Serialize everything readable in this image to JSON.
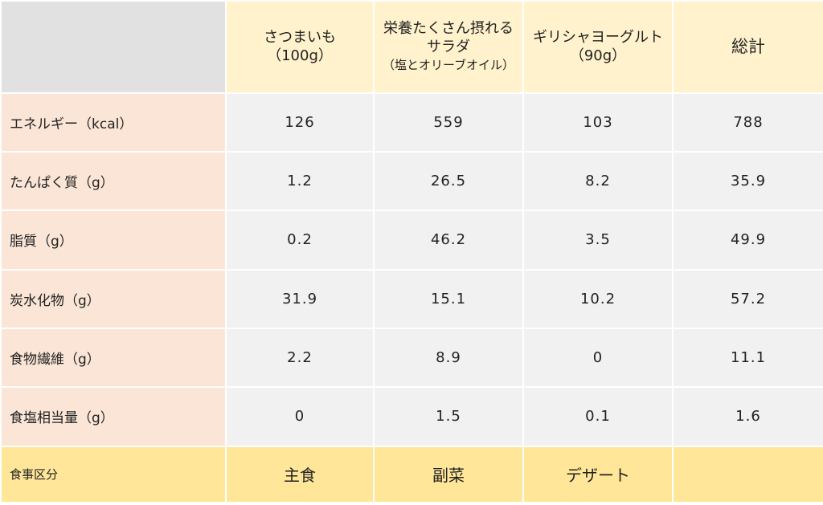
{
  "table": {
    "headers": [
      {
        "lines": [
          "さつまいも",
          "（100g）"
        ]
      },
      {
        "lines": [
          "栄養たくさん摂れる",
          "サラダ",
          "（塩とオリーブオイル）"
        ]
      },
      {
        "lines": [
          "ギリシャヨーグルト",
          "（90g）"
        ]
      },
      {
        "lines": [
          "総計"
        ]
      }
    ],
    "rows": [
      {
        "label": "エネルギー（kcal）",
        "values": [
          "126",
          "559",
          "103",
          "788"
        ]
      },
      {
        "label": "たんぱく質（g）",
        "values": [
          "1.2",
          "26.5",
          "8.2",
          "35.9"
        ]
      },
      {
        "label": "脂質（g）",
        "values": [
          "0.2",
          "46.2",
          "3.5",
          "49.9"
        ]
      },
      {
        "label": "炭水化物（g）",
        "values": [
          "31.9",
          "15.1",
          "10.2",
          "57.2"
        ]
      },
      {
        "label": "食物繊維（g）",
        "values": [
          "2.2",
          "8.9",
          "0",
          "11.1"
        ]
      },
      {
        "label": "食塩相当量（g）",
        "values": [
          "0",
          "1.5",
          "0.1",
          "1.6"
        ]
      }
    ],
    "category": {
      "label": "食事区分",
      "values": [
        "主食",
        "副菜",
        "デザート",
        ""
      ]
    }
  },
  "colors": {
    "corner": "#e1e1e1",
    "header": "#fff2cc",
    "row_label": "#fbe5d6",
    "value_cell": "#f1f1f1",
    "category_row": "#ffe699",
    "main_dish": "#ff0000",
    "side_dish": "#70ad47",
    "dessert": "#ff6699"
  }
}
